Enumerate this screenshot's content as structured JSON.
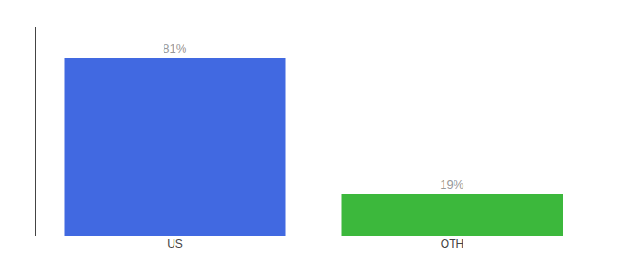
{
  "chart_data": {
    "type": "bar",
    "categories": [
      "US",
      "OTH"
    ],
    "values": [
      81,
      19
    ],
    "value_labels": [
      "81%",
      "19%"
    ],
    "colors": [
      "#4169e1",
      "#3cb83c"
    ],
    "ylim": [
      0,
      95
    ],
    "data_labels": true,
    "tick_labels": "x",
    "grid": false
  }
}
